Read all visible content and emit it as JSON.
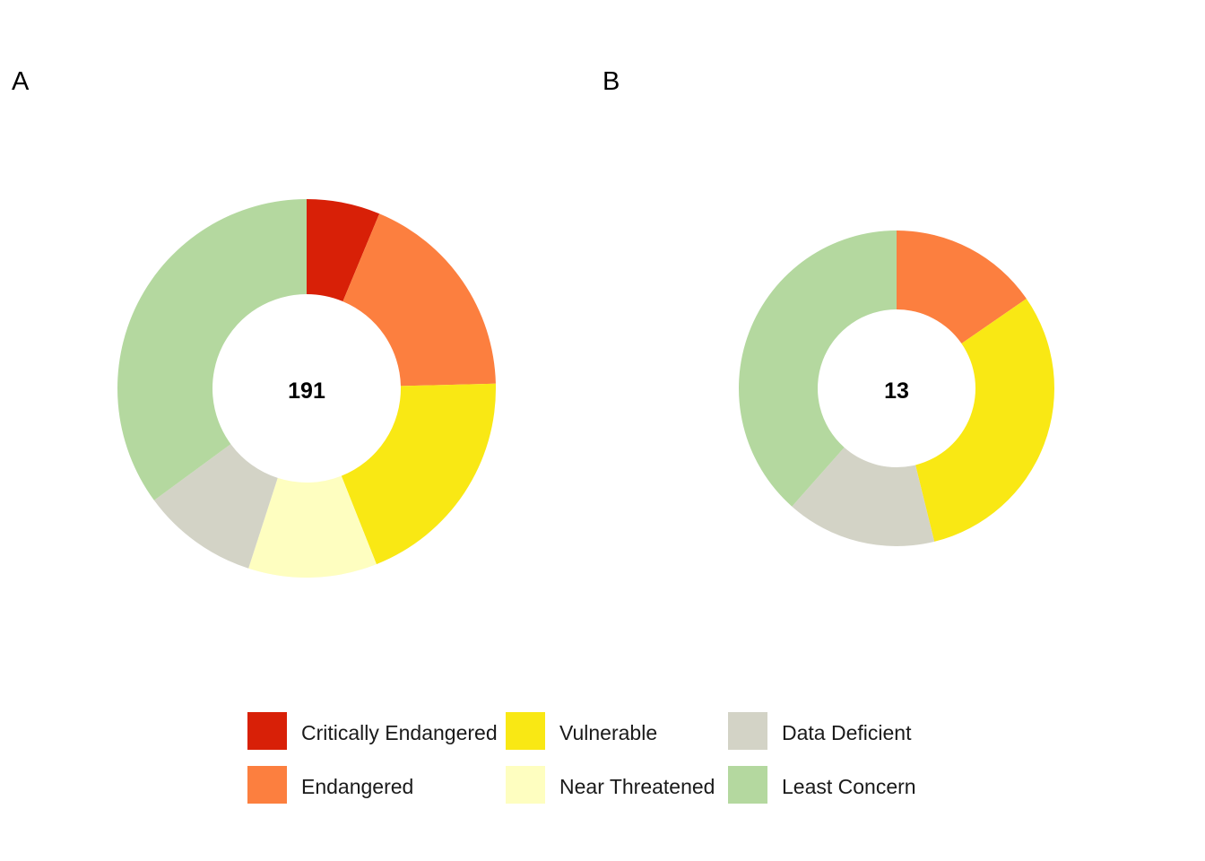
{
  "chart_data": [
    {
      "type": "pie",
      "panel_label": "A",
      "donut": true,
      "total_label": "191",
      "categories": [
        "Critically Endangered",
        "Endangered",
        "Vulnerable",
        "Near Threatened",
        "Data Deficient",
        "Least Concern"
      ],
      "values": [
        12,
        35,
        37,
        21,
        19,
        67
      ],
      "colors": [
        "#d82007",
        "#fc7f3f",
        "#f9e814",
        "#fefec0",
        "#d3d3c6",
        "#b4d89f"
      ]
    },
    {
      "type": "pie",
      "panel_label": "B",
      "donut": true,
      "total_label": "13",
      "categories": [
        "Critically Endangered",
        "Endangered",
        "Vulnerable",
        "Near Threatened",
        "Data Deficient",
        "Least Concern"
      ],
      "values": [
        0,
        2,
        4,
        0,
        2,
        5
      ],
      "colors": [
        "#d82007",
        "#fc7f3f",
        "#f9e814",
        "#fefec0",
        "#d3d3c6",
        "#b4d89f"
      ]
    }
  ],
  "legend": {
    "placement": "bottom",
    "items": [
      {
        "label": "Critically Endangered",
        "color": "#d82007"
      },
      {
        "label": "Endangered",
        "color": "#fc7f3f"
      },
      {
        "label": "Vulnerable",
        "color": "#f9e814"
      },
      {
        "label": "Near Threatened",
        "color": "#fefec0"
      },
      {
        "label": "Data Deficient",
        "color": "#d3d3c6"
      },
      {
        "label": "Least Concern",
        "color": "#b4d89f"
      }
    ]
  }
}
